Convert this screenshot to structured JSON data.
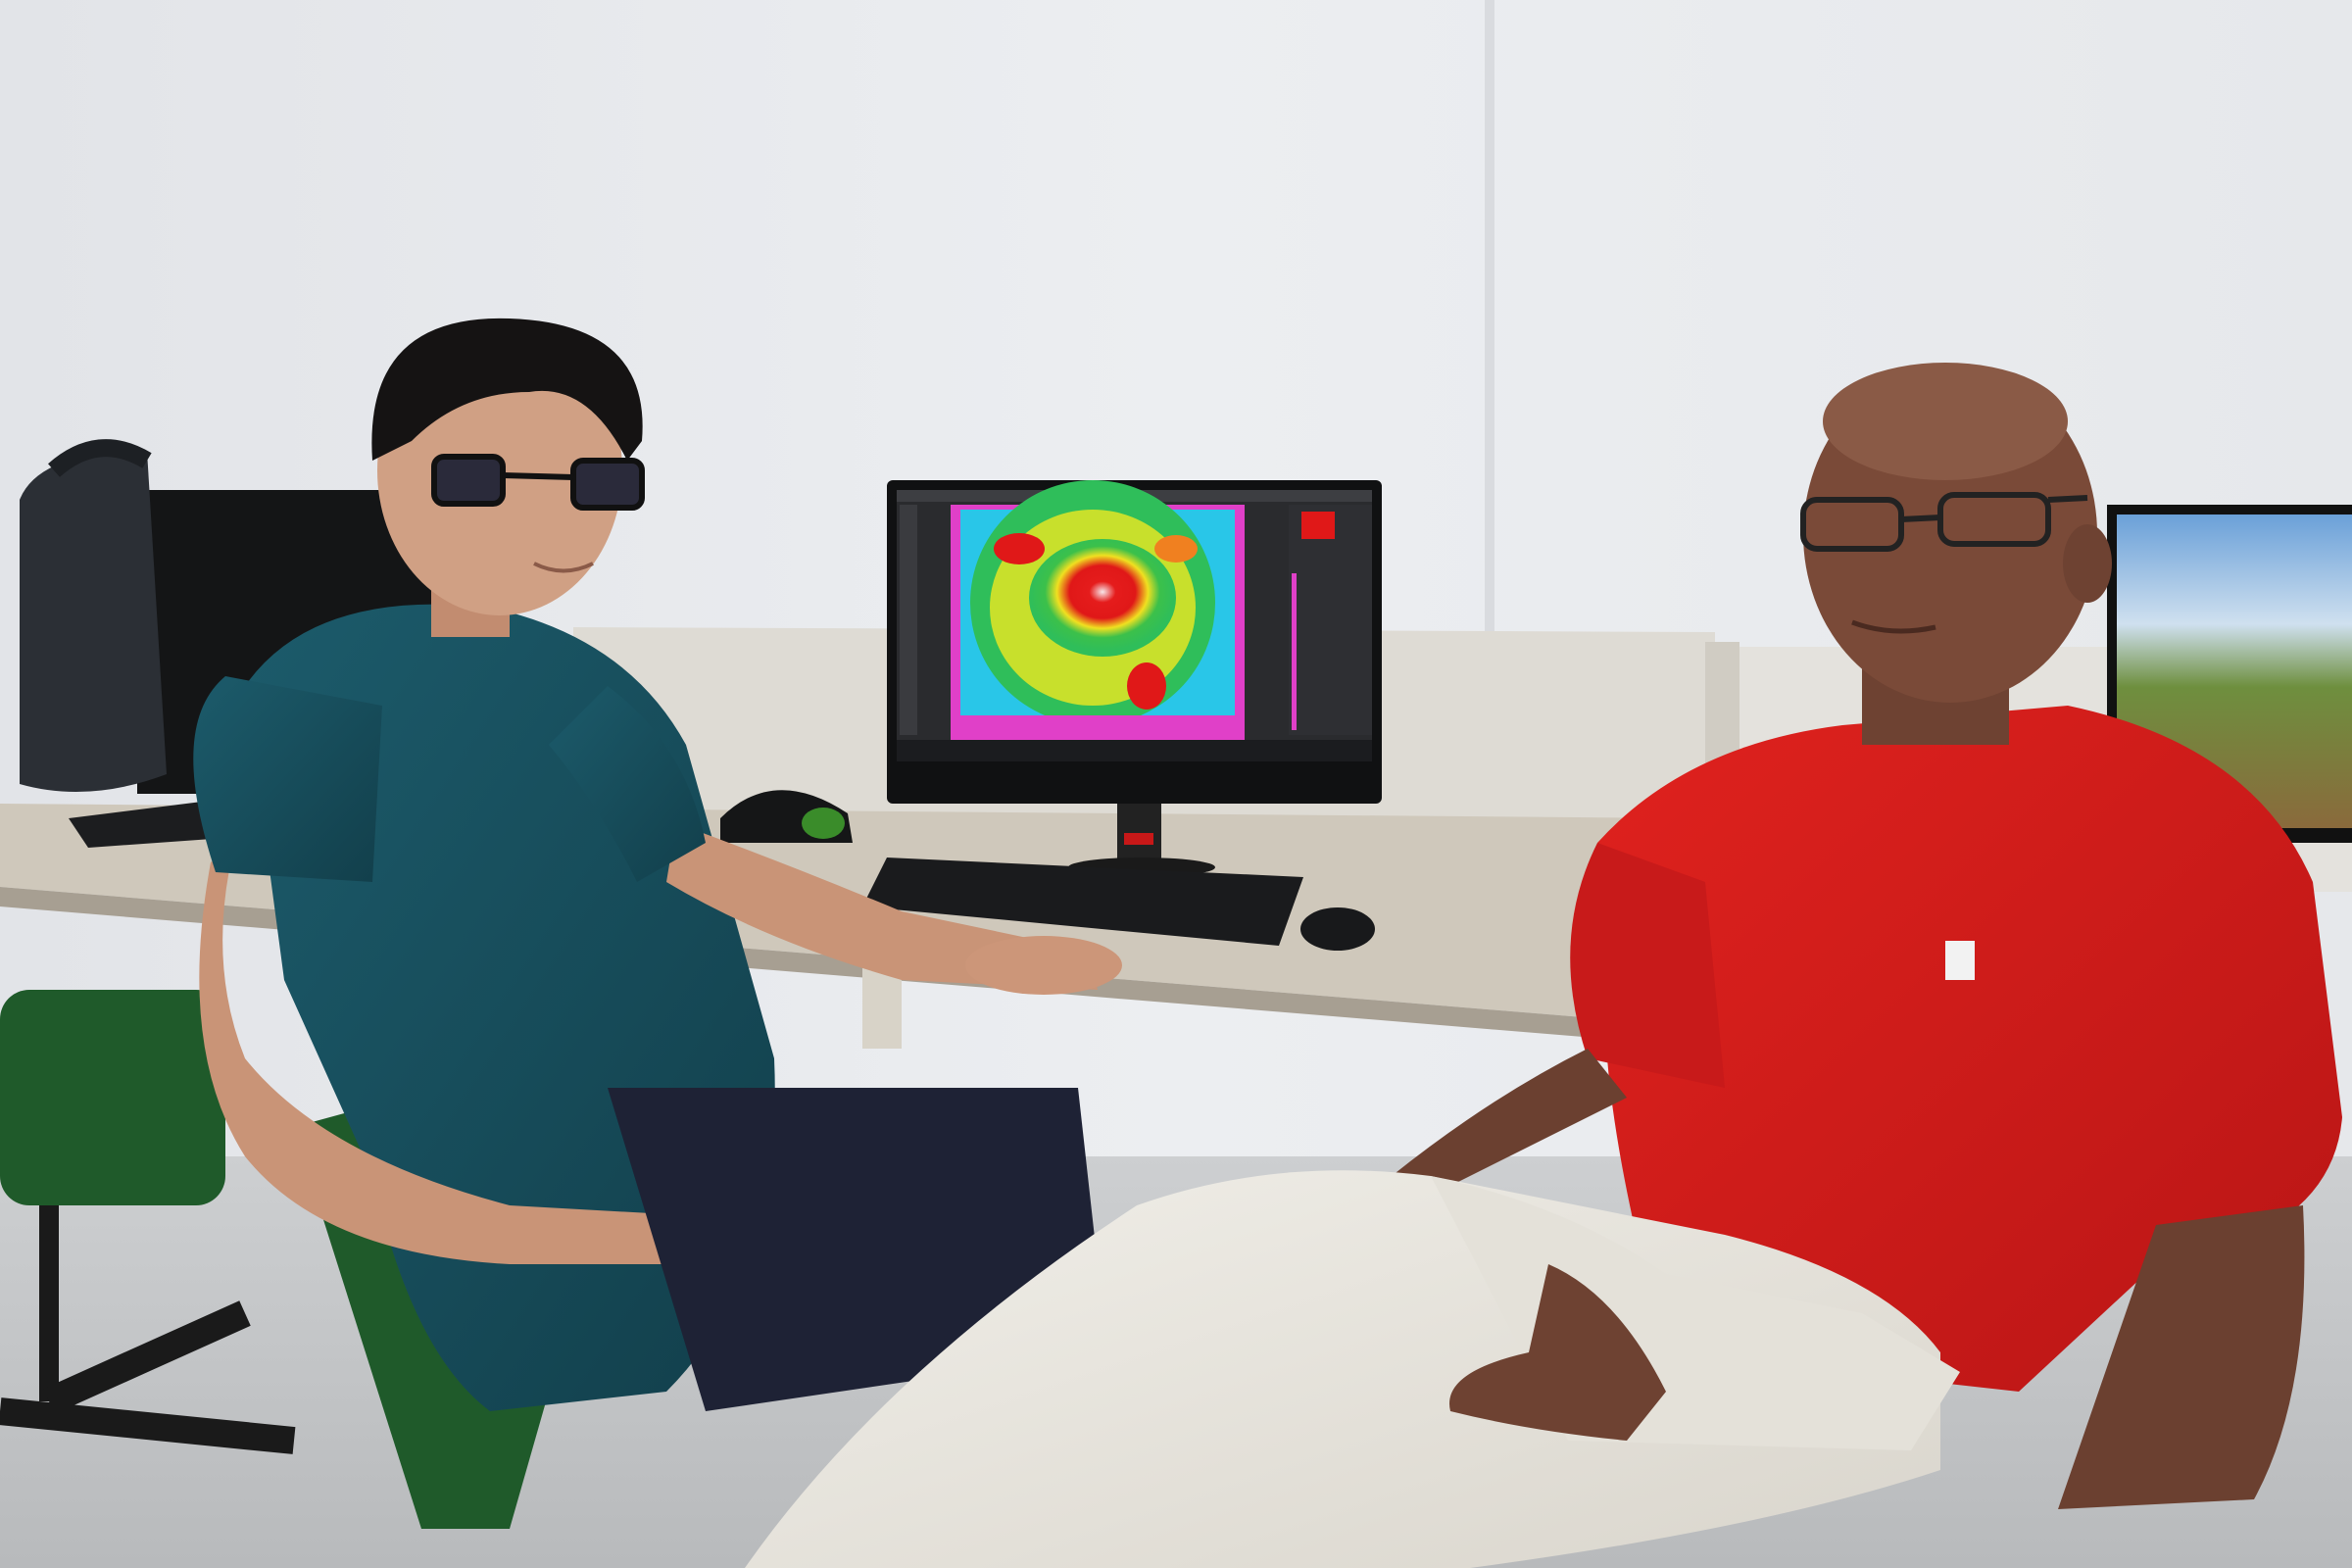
{
  "scene": {
    "description_colors": {
      "wall": "#e8eaed",
      "desk": "#cfc8bb",
      "teal_shirt": "#17505f",
      "red_shirt": "#d11c1c",
      "white_pants": "#e6e3dc",
      "chair_green": "#1f5a2a"
    },
    "screen_thermal": {
      "palette": [
        "#2c2a8a",
        "#e040c8",
        "#29c6e8",
        "#2fbe5a",
        "#c8e02c",
        "#f0e020",
        "#f08020",
        "#e01818"
      ]
    }
  }
}
